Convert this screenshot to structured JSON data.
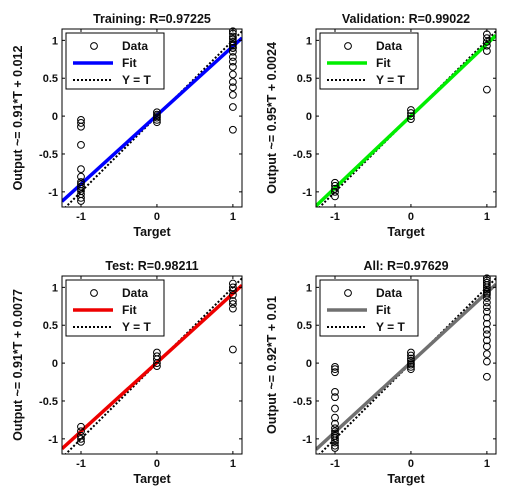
{
  "chart_data": [
    {
      "type": "scatter",
      "title": "Training: R=0.97225",
      "xlabel": "Target",
      "ylabel": "Output ~= 0.91*T + 0.012",
      "xlim": [
        -1.25,
        1.12
      ],
      "ylim": [
        -1.2,
        1.15
      ],
      "xticks": [
        -1,
        0,
        1
      ],
      "yticks": [
        -1,
        -0.5,
        0,
        0.5,
        1
      ],
      "xtick_labels": [
        "-1",
        "0",
        "1"
      ],
      "ytick_labels": [
        "-1",
        "-0.5",
        "0",
        "0.5",
        "1"
      ],
      "fit": {
        "slope": 0.91,
        "intercept": 0.012,
        "color": "#0000ff"
      },
      "legend": {
        "placement": "top-left",
        "entries": [
          "Data",
          "Fit",
          "Y = T"
        ]
      },
      "series": [
        {
          "name": "Data",
          "x": [
            -1,
            -1,
            -1,
            -1,
            -1,
            -1,
            -1,
            -1,
            -1,
            -1,
            -1,
            -1,
            -1,
            -1,
            0,
            0,
            0,
            0,
            0,
            0,
            1,
            1,
            1,
            1,
            1,
            1,
            1,
            1,
            1,
            1,
            1,
            1,
            1,
            1,
            1,
            1,
            1,
            1,
            1
          ],
          "y": [
            -1.12,
            -1.08,
            -1.03,
            -0.99,
            -0.96,
            -0.93,
            -0.9,
            -0.87,
            -0.8,
            -0.7,
            -0.38,
            -0.14,
            -0.09,
            -0.05,
            -0.08,
            -0.05,
            -0.02,
            0.0,
            0.02,
            0.05,
            1.12,
            1.09,
            1.05,
            1.02,
            0.98,
            0.95,
            0.93,
            0.9,
            0.85,
            0.78,
            0.72,
            0.65,
            0.55,
            0.45,
            0.38,
            0.28,
            0.12,
            -0.18,
            0.9
          ]
        },
        {
          "name": "Fit"
        },
        {
          "name": "Y = T"
        }
      ]
    },
    {
      "type": "scatter",
      "title": "Validation: R=0.99022",
      "xlabel": "Target",
      "ylabel": "Output ~= 0.95*T + 0.0024",
      "xlim": [
        -1.25,
        1.12
      ],
      "ylim": [
        -1.2,
        1.15
      ],
      "xticks": [
        -1,
        0,
        1
      ],
      "yticks": [
        -1,
        -0.5,
        0,
        0.5,
        1
      ],
      "xtick_labels": [
        "-1",
        "0",
        "1"
      ],
      "ytick_labels": [
        "-1",
        "-0.5",
        "0",
        "0.5",
        "1"
      ],
      "fit": {
        "slope": 0.95,
        "intercept": 0.0024,
        "color": "#00ee00"
      },
      "legend": {
        "placement": "top-left",
        "entries": [
          "Data",
          "Fit",
          "Y = T"
        ]
      },
      "series": [
        {
          "name": "Data",
          "x": [
            -1,
            -1,
            -1,
            -1,
            -1,
            0,
            0,
            0,
            0,
            1,
            1,
            1,
            1,
            1,
            1
          ],
          "y": [
            -1.06,
            -1.0,
            -0.96,
            -0.92,
            -0.88,
            -0.04,
            0.0,
            0.04,
            0.08,
            1.08,
            1.03,
            0.98,
            0.93,
            0.86,
            0.35
          ]
        },
        {
          "name": "Fit"
        },
        {
          "name": "Y = T"
        }
      ]
    },
    {
      "type": "scatter",
      "title": "Test: R=0.98211",
      "xlabel": "Target",
      "ylabel": "Output ~= 0.91*T + 0.0077",
      "xlim": [
        -1.25,
        1.12
      ],
      "ylim": [
        -1.2,
        1.15
      ],
      "xticks": [
        -1,
        0,
        1
      ],
      "yticks": [
        -1,
        -0.5,
        0,
        0.5,
        1
      ],
      "xtick_labels": [
        "-1",
        "0",
        "1"
      ],
      "ytick_labels": [
        "-1",
        "-0.5",
        "0",
        "0.5",
        "1"
      ],
      "fit": {
        "slope": 0.91,
        "intercept": 0.0077,
        "color": "#ee0000"
      },
      "legend": {
        "placement": "top-left",
        "entries": [
          "Data",
          "Fit",
          "Y = T"
        ]
      },
      "series": [
        {
          "name": "Data",
          "x": [
            -1,
            -1,
            -1,
            -1,
            -1,
            0,
            0,
            0,
            0,
            0,
            1,
            1,
            1,
            1,
            1,
            1,
            1,
            1
          ],
          "y": [
            -1.04,
            -1.0,
            -0.96,
            -0.9,
            -0.84,
            -0.04,
            0.0,
            0.05,
            0.09,
            0.14,
            1.05,
            1.0,
            0.96,
            0.9,
            0.82,
            0.78,
            0.72,
            0.18
          ]
        },
        {
          "name": "Fit"
        },
        {
          "name": "Y = T"
        }
      ]
    },
    {
      "type": "scatter",
      "title": "All: R=0.97629",
      "xlabel": "Target",
      "ylabel": "Output ~= 0.92*T + 0.01",
      "xlim": [
        -1.25,
        1.12
      ],
      "ylim": [
        -1.2,
        1.15
      ],
      "xticks": [
        -1,
        0,
        1
      ],
      "yticks": [
        -1,
        -0.5,
        0,
        0.5,
        1
      ],
      "xtick_labels": [
        "-1",
        "0",
        "1"
      ],
      "ytick_labels": [
        "-1",
        "-0.5",
        "0",
        "0.5",
        "1"
      ],
      "fit": {
        "slope": 0.92,
        "intercept": 0.01,
        "color": "#707070"
      },
      "legend": {
        "placement": "top-left",
        "entries": [
          "Data",
          "Fit",
          "Y = T"
        ]
      },
      "series": [
        {
          "name": "Data",
          "x": [
            -1,
            -1,
            -1,
            -1,
            -1,
            -1,
            -1,
            -1,
            -1,
            -1,
            -1,
            -1,
            -1,
            -1,
            -1,
            -1,
            -1,
            0,
            0,
            0,
            0,
            0,
            0,
            0,
            0,
            1,
            1,
            1,
            1,
            1,
            1,
            1,
            1,
            1,
            1,
            1,
            1,
            1,
            1,
            1,
            1,
            1,
            1,
            1,
            1,
            1,
            1
          ],
          "y": [
            -1.12,
            -1.09,
            -1.05,
            -1.02,
            -0.99,
            -0.96,
            -0.93,
            -0.9,
            -0.86,
            -0.8,
            -0.72,
            -0.6,
            -0.45,
            -0.38,
            -0.12,
            -0.08,
            -0.05,
            -0.08,
            -0.05,
            -0.02,
            0.0,
            0.03,
            0.06,
            0.1,
            0.14,
            1.12,
            1.09,
            1.06,
            1.03,
            1.0,
            0.97,
            0.94,
            0.9,
            0.86,
            0.8,
            0.74,
            0.68,
            0.6,
            0.52,
            0.44,
            0.38,
            0.3,
            0.22,
            0.12,
            0.02,
            -0.18,
            0.92
          ]
        },
        {
          "name": "Fit"
        },
        {
          "name": "Y = T"
        }
      ]
    }
  ]
}
